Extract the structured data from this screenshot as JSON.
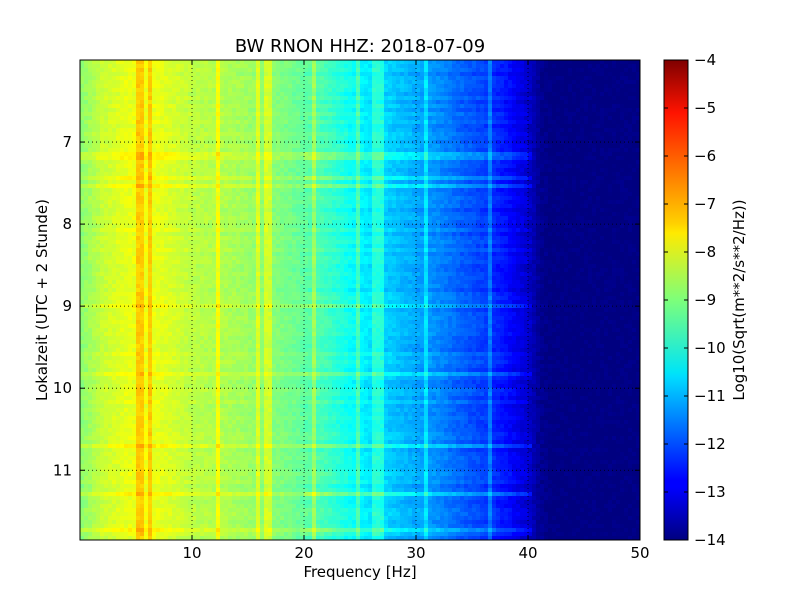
{
  "chart_data": {
    "type": "heatmap",
    "title": "BW RNON HHZ: 2018-07-09",
    "xlabel": "Frequency [Hz]",
    "ylabel": "Lokalzeit (UTC + 2 Stunde)",
    "colorbar_label": "Log10(Sqrt(m**2/s**2/Hz))",
    "colormap": "jet",
    "xlim": [
      0,
      50
    ],
    "ylim": [
      11.85,
      6.0
    ],
    "y_inverted": true,
    "x_ticks": [
      10,
      20,
      30,
      40,
      50
    ],
    "y_ticks": [
      7,
      8,
      9,
      10,
      11
    ],
    "clim": [
      -14,
      -4
    ],
    "colorbar_ticks": [
      -4,
      -5,
      -6,
      -7,
      -8,
      -9,
      -10,
      -11,
      -12,
      -13,
      -14
    ],
    "grid": true,
    "spectrum_profile": {
      "frequency_hz": [
        0,
        2,
        4,
        6,
        8,
        10,
        12,
        14,
        16,
        18,
        20,
        22,
        24,
        26,
        28,
        30,
        32,
        34,
        36,
        38,
        40,
        41,
        42,
        50
      ],
      "log10_amplitude": [
        -8.9,
        -8.3,
        -8.0,
        -7.9,
        -8.1,
        -8.4,
        -8.5,
        -8.6,
        -8.8,
        -9.0,
        -9.3,
        -9.6,
        -10.1,
        -10.5,
        -10.8,
        -11.1,
        -11.4,
        -11.8,
        -12.1,
        -12.6,
        -13.2,
        -13.8,
        -14.0,
        -14.0
      ]
    },
    "line_features_hz": [
      5.3,
      6.3,
      12.4,
      15.9,
      16.8,
      21.0,
      24.8,
      26.2,
      26.8,
      31.0,
      36.7
    ]
  }
}
